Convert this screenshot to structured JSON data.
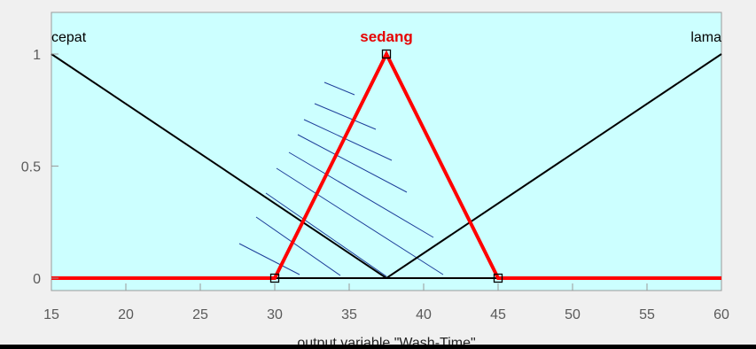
{
  "chart_data": {
    "type": "line",
    "xlabel": "output variable \"Wash-Time\"",
    "xlim": [
      15,
      60
    ],
    "ylim": [
      0,
      1
    ],
    "xticks": [
      15,
      20,
      25,
      30,
      35,
      40,
      45,
      50,
      55,
      60
    ],
    "yticks": [
      {
        "value": 0,
        "label": "0"
      },
      {
        "value": 0.5,
        "label": "0.5"
      },
      {
        "value": 1,
        "label": "1"
      }
    ],
    "background_color": "#ccffff",
    "series": [
      {
        "name": "cepat",
        "selected": false,
        "color": "#000000",
        "points": [
          [
            15,
            1
          ],
          [
            37.5,
            0
          ],
          [
            60,
            0
          ]
        ]
      },
      {
        "name": "sedang",
        "selected": true,
        "color": "#ff0000",
        "points": [
          [
            15,
            0
          ],
          [
            30,
            0
          ],
          [
            37.5,
            1
          ],
          [
            45,
            0
          ],
          [
            60,
            0
          ]
        ]
      },
      {
        "name": "lama",
        "selected": false,
        "color": "#000000",
        "points": [
          [
            15,
            0
          ],
          [
            37.5,
            0
          ],
          [
            60,
            1
          ]
        ]
      }
    ],
    "selected_markers": [
      [
        30,
        0
      ],
      [
        37.5,
        1
      ],
      [
        45,
        0
      ]
    ]
  }
}
